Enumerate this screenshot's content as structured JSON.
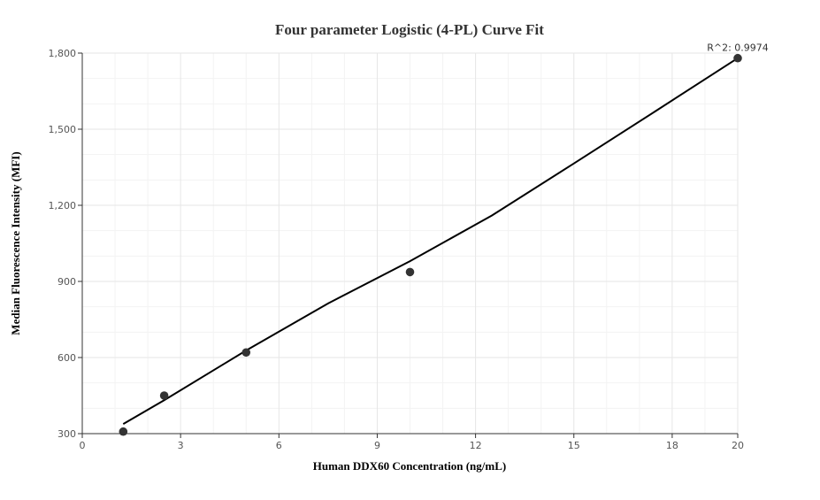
{
  "chart_data": {
    "type": "scatter",
    "title": "Four parameter Logistic (4-PL) Curve Fit",
    "xlabel": "Human DDX60 Concentration (ng/mL)",
    "ylabel": "Median Fluorescence Intensity (MFI)",
    "xlim": [
      0,
      20
    ],
    "ylim": [
      300,
      1800
    ],
    "x_ticks": [
      0,
      3,
      6,
      9,
      12,
      15,
      18,
      20
    ],
    "x_tick_labels": [
      "0",
      "3",
      "6",
      "9",
      "12",
      "15",
      "18",
      "20"
    ],
    "y_ticks": [
      300,
      600,
      900,
      1200,
      1500,
      1800
    ],
    "y_tick_labels": [
      "300",
      "600",
      "900",
      "1,200",
      "1,500",
      "1,800"
    ],
    "grid": true,
    "series": [
      {
        "kind": "points",
        "x": [
          1.25,
          2.5,
          5,
          10,
          20
        ],
        "y": [
          308,
          450,
          620,
          937,
          1780
        ]
      },
      {
        "kind": "fit-line",
        "x": [
          1.25,
          2.5,
          5,
          7.5,
          10,
          12.5,
          15,
          17.5,
          20
        ],
        "y": [
          338,
          432,
          628,
          813,
          980,
          1160,
          1365,
          1572,
          1780
        ]
      }
    ],
    "annotation": "R^2: 0.9974",
    "colors": {
      "points": "#333333",
      "line": "#000000"
    }
  }
}
